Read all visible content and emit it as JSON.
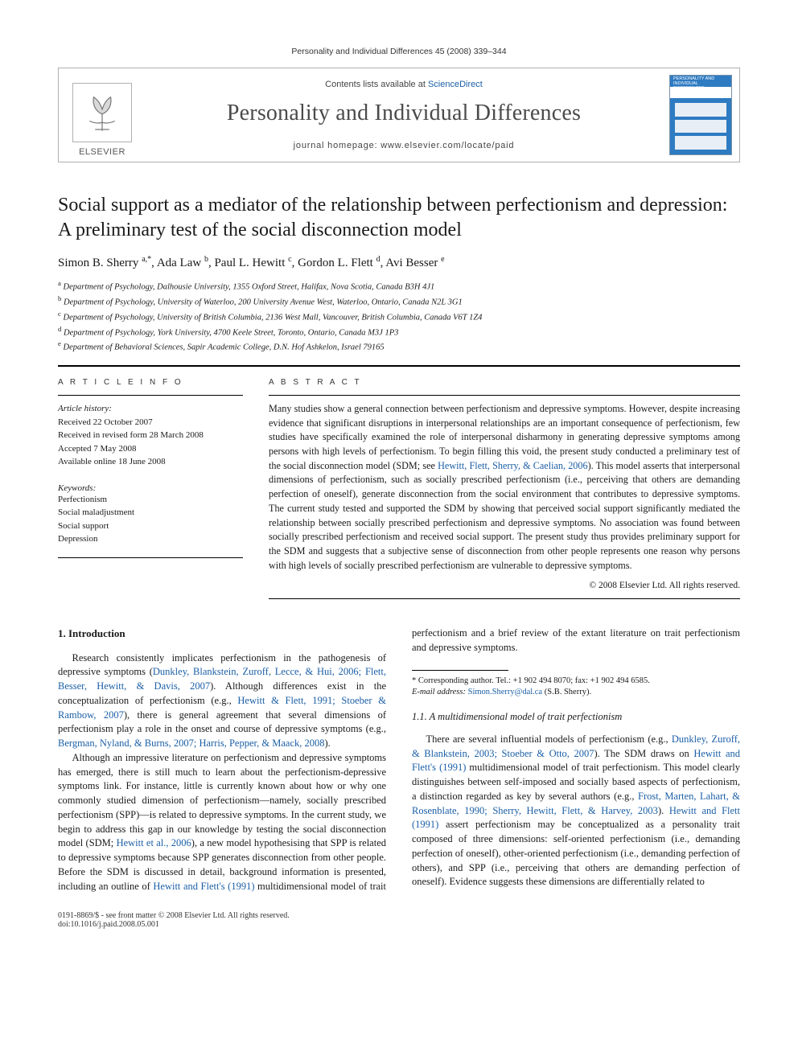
{
  "running_head": "Personality and Individual Differences 45 (2008) 339–344",
  "banner": {
    "contents_prefix": "Contents lists available at ",
    "contents_link": "ScienceDirect",
    "journal": "Personality and Individual Differences",
    "homepage_prefix": "journal homepage: ",
    "homepage_url": "www.elsevier.com/locate/paid",
    "publisher_word": "ELSEVIER",
    "cover_mini_title": "PERSONALITY AND INDIVIDUAL DIFFERENCES"
  },
  "title": "Social support as a mediator of the relationship between perfectionism and depression: A preliminary test of the social disconnection model",
  "authors_html": "Simon B. Sherry <sup>a,*</sup>, Ada Law <sup>b</sup>, Paul L. Hewitt <sup>c</sup>, Gordon L. Flett <sup>d</sup>, Avi Besser <sup>e</sup>",
  "affiliations": [
    "a|Department of Psychology, Dalhousie University, 1355 Oxford Street, Halifax, Nova Scotia, Canada B3H 4J1",
    "b|Department of Psychology, University of Waterloo, 200 University Avenue West, Waterloo, Ontario, Canada N2L 3G1",
    "c|Department of Psychology, University of British Columbia, 2136 West Mall, Vancouver, British Columbia, Canada V6T 1Z4",
    "d|Department of Psychology, York University, 4700 Keele Street, Toronto, Ontario, Canada M3J 1P3",
    "e|Department of Behavioral Sciences, Sapir Academic College, D.N. Hof Ashkelon, Israel 79165"
  ],
  "info_labels": {
    "left": "A R T I C L E   I N F O",
    "right": "A B S T R A C T"
  },
  "history": {
    "heading": "Article history:",
    "received": "Received 22 October 2007",
    "revised": "Received in revised form 28 March 2008",
    "accepted": "Accepted 7 May 2008",
    "online": "Available online 18 June 2008"
  },
  "keywords_heading": "Keywords:",
  "keywords": [
    "Perfectionism",
    "Social maladjustment",
    "Social support",
    "Depression"
  ],
  "abstract_pre": "Many studies show a general connection between perfectionism and depressive symptoms. However, despite increasing evidence that significant disruptions in interpersonal relationships are an important consequence of perfectionism, few studies have specifically examined the role of interpersonal disharmony in generating depressive symptoms among persons with high levels of perfectionism. To begin filling this void, the present study conducted a preliminary test of the social disconnection model (SDM; see ",
  "abstract_link": "Hewitt, Flett, Sherry, & Caelian, 2006",
  "abstract_post": "). This model asserts that interpersonal dimensions of perfectionism, such as socially prescribed perfectionism (i.e., perceiving that others are demanding perfection of oneself), generate disconnection from the social environment that contributes to depressive symptoms. The current study tested and supported the SDM by showing that perceived social support significantly mediated the relationship between socially prescribed perfectionism and depressive symptoms. No association was found between socially prescribed perfectionism and received social support. The present study thus provides preliminary support for the SDM and suggests that a subjective sense of disconnection from other people represents one reason why persons with high levels of socially prescribed perfectionism are vulnerable to depressive symptoms.",
  "abstract_copyright": "© 2008 Elsevier Ltd. All rights reserved.",
  "sections": {
    "intro_heading": "1. Introduction",
    "p1_a": "Research consistently implicates perfectionism in the pathogenesis of depressive symptoms (",
    "p1_link1": "Dunkley, Blankstein, Zuroff, Lecce, & Hui, 2006; Flett, Besser, Hewitt, & Davis, 2007",
    "p1_b": "). Although differences exist in the conceptualization of perfectionism (e.g., ",
    "p1_link2": "Hewitt & Flett, 1991; Stoeber & Rambow, 2007",
    "p1_c": "), there is general agreement that several dimensions of perfectionism play a role in the onset and course of depressive symptoms (e.g., ",
    "p1_link3": "Bergman, Nyland, & Burns, 2007; Harris, Pepper, & Maack, 2008",
    "p1_d": ").",
    "p2_a": "Although an impressive literature on perfectionism and depressive symptoms has emerged, there is still much to learn about the perfectionism-depressive symptoms link. For instance, little is currently known about how or why one commonly studied dimension of perfectionism—namely, socially prescribed perfectionism (SPP)—is related to depressive symptoms. In the current study, we begin to address this gap in our knowledge by testing the social disconnection model (SDM; ",
    "p2_link1": "Hewitt et al., 2006",
    "p2_b": "), a new model hypothesising that SPP is related to depressive symptoms because SPP generates disconnection from other people. Before the SDM is discussed in detail, background information is presented, including an outline of ",
    "p2_link2": "Hewitt and Flett's (1991)",
    "p2_c": " multidimensional model of trait perfectionism and a brief review of the extant literature on trait perfectionism and depressive symptoms.",
    "sub_heading": "1.1. A multidimensional model of trait perfectionism",
    "p3_a": "There are several influential models of perfectionism (e.g., ",
    "p3_link1": "Dunkley, Zuroff, & Blankstein, 2003; Stoeber & Otto, 2007",
    "p3_b": "). The SDM draws on ",
    "p3_link2": "Hewitt and Flett's (1991)",
    "p3_c": " multidimensional model of trait perfectionism. This model clearly distinguishes between self-imposed and socially based aspects of perfectionism, a distinction regarded as key by several authors (e.g., ",
    "p3_link3": "Frost, Marten, Lahart, & Rosenblate, 1990; Sherry, Hewitt, Flett, & Harvey, 2003",
    "p3_d": "). ",
    "p3_link4": "Hewitt and Flett (1991)",
    "p3_e": " assert perfectionism may be conceptualized as a personality trait composed of three dimensions: self-oriented perfectionism (i.e., demanding perfection of oneself), other-oriented perfectionism (i.e., demanding perfection of others), and SPP (i.e., perceiving that others are demanding perfection of oneself). Evidence suggests these dimensions are differentially related to"
  },
  "footnote": {
    "corr": "* Corresponding author. Tel.: +1 902 494 8070; fax: +1 902 494 6585.",
    "email_label": "E-mail address:",
    "email": "Simon.Sherry@dal.ca",
    "email_who": "(S.B. Sherry)."
  },
  "bottom": {
    "left1": "0191-8869/$ - see front matter © 2008 Elsevier Ltd. All rights reserved.",
    "left2": "doi:10.1016/j.paid.2008.05.001"
  },
  "colors": {
    "link": "#1b5fa6",
    "rule": "#000000",
    "banner_border": "#b0b0b0",
    "cover_bg": "#2e7bc2"
  }
}
